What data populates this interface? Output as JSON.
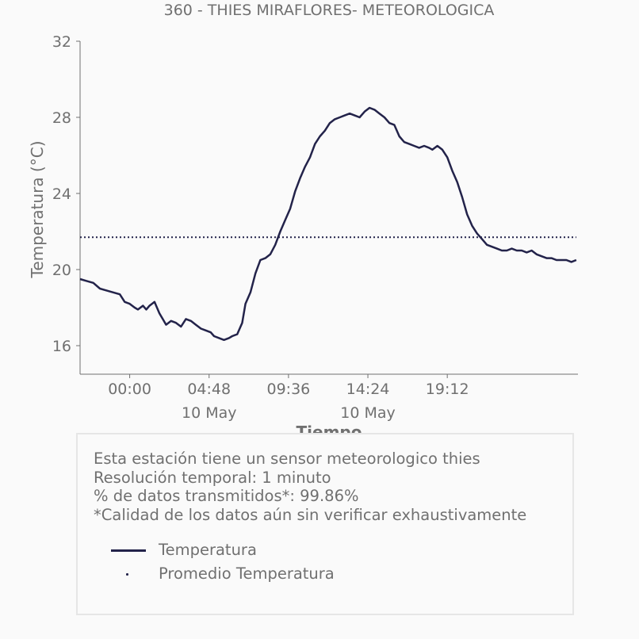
{
  "colors": {
    "line": "#23234a",
    "text": "#707070",
    "axis": "#707070",
    "box_border": "#e6e6e6",
    "background": "#fafafa"
  },
  "info": {
    "line1": "Esta estación tiene un sensor meteorologico thies",
    "line2": "Resolución temporal: 1 minuto",
    "line3": "% de datos transmitidos*: 99.86%",
    "line4": "*Calidad de los datos aún sin verificar exhaustivamente"
  },
  "chart_data": {
    "type": "line",
    "title": "360 - THIES MIRAFLORES- METEOROLOGICA",
    "xlabel": "Tiempo",
    "ylabel": "Temperatura (°C)",
    "x_unit": "hours relative to 00:00 10 May",
    "xlim": [
      -3,
      27.1
    ],
    "ylim": [
      14.5,
      32
    ],
    "yticks": [
      16,
      20,
      24,
      28,
      32
    ],
    "xticks": [
      {
        "x": 0,
        "label": "00:00",
        "sublabel": ""
      },
      {
        "x": 4.8,
        "label": "04:48",
        "sublabel": "10 May"
      },
      {
        "x": 9.6,
        "label": "09:36",
        "sublabel": ""
      },
      {
        "x": 14.4,
        "label": "14:24",
        "sublabel": "10 May"
      },
      {
        "x": 19.2,
        "label": "19:12",
        "sublabel": ""
      }
    ],
    "grid": false,
    "legend_placement": "below chart",
    "series": [
      {
        "name": "Temperatura",
        "style": "solid",
        "x": [
          -3.0,
          -2.6,
          -2.2,
          -1.8,
          -1.4,
          -1.0,
          -0.6,
          -0.3,
          0.0,
          0.3,
          0.5,
          0.8,
          1.0,
          1.2,
          1.5,
          1.8,
          2.0,
          2.2,
          2.5,
          2.8,
          3.1,
          3.4,
          3.7,
          4.0,
          4.3,
          4.6,
          4.9,
          5.1,
          5.4,
          5.7,
          6.0,
          6.2,
          6.5,
          6.8,
          7.0,
          7.3,
          7.6,
          7.9,
          8.2,
          8.5,
          8.8,
          9.1,
          9.4,
          9.7,
          10.0,
          10.3,
          10.6,
          10.9,
          11.2,
          11.5,
          11.8,
          12.1,
          12.4,
          12.7,
          13.0,
          13.3,
          13.6,
          13.9,
          14.2,
          14.5,
          14.8,
          15.1,
          15.4,
          15.7,
          16.0,
          16.3,
          16.6,
          16.9,
          17.2,
          17.5,
          17.8,
          18.1,
          18.3,
          18.6,
          18.9,
          19.2,
          19.5,
          19.8,
          20.1,
          20.4,
          20.7,
          21.0,
          21.3,
          21.6,
          21.9,
          22.2,
          22.5,
          22.8,
          23.1,
          23.4,
          23.7,
          24.0,
          24.3,
          24.6,
          24.9,
          25.2,
          25.5,
          25.8,
          26.1,
          26.4,
          26.7,
          27.0
        ],
        "values": [
          19.5,
          19.4,
          19.3,
          19.0,
          18.9,
          18.8,
          18.7,
          18.3,
          18.2,
          18.0,
          17.9,
          18.1,
          17.9,
          18.1,
          18.3,
          17.7,
          17.4,
          17.1,
          17.3,
          17.2,
          17.0,
          17.4,
          17.3,
          17.1,
          16.9,
          16.8,
          16.7,
          16.5,
          16.4,
          16.3,
          16.4,
          16.5,
          16.6,
          17.2,
          18.2,
          18.8,
          19.8,
          20.5,
          20.6,
          20.8,
          21.3,
          22.0,
          22.6,
          23.2,
          24.1,
          24.8,
          25.4,
          25.9,
          26.6,
          27.0,
          27.3,
          27.7,
          27.9,
          28.0,
          28.1,
          28.2,
          28.1,
          28.0,
          28.3,
          28.5,
          28.4,
          28.2,
          28.0,
          27.7,
          27.6,
          27.0,
          26.7,
          26.6,
          26.5,
          26.4,
          26.5,
          26.4,
          26.3,
          26.5,
          26.3,
          25.9,
          25.2,
          24.6,
          23.8,
          22.9,
          22.3,
          21.9,
          21.6,
          21.3,
          21.2,
          21.1,
          21.0,
          21.0,
          21.1,
          21.0,
          21.0,
          20.9,
          21.0,
          20.8,
          20.7,
          20.6,
          20.6,
          20.5,
          20.5,
          20.5,
          20.4,
          20.5
        ]
      },
      {
        "name": "Promedio Temperatura",
        "style": "dotted",
        "x": [
          -3.0,
          27.0
        ],
        "values": [
          21.7,
          21.7
        ]
      }
    ]
  }
}
